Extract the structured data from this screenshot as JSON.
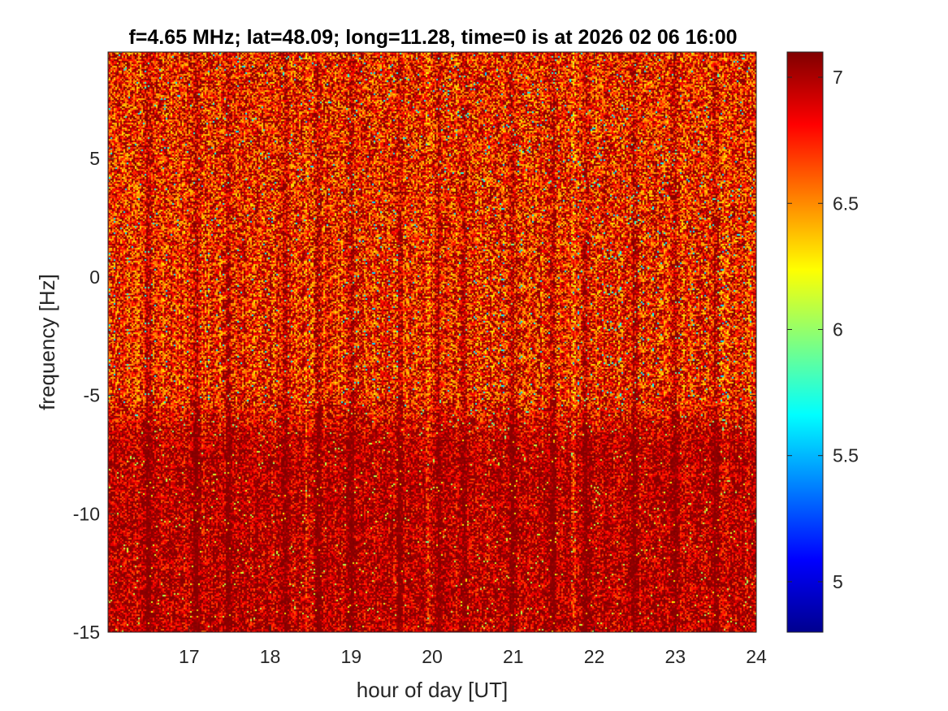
{
  "chart_data": {
    "type": "heatmap",
    "title": "f=4.65 MHz;  lat=48.09; long=11.28, time=0 is at 2026 02 06 16:00",
    "xlabel": "hour of day [UT]",
    "ylabel": "frequency [Hz]",
    "xlim": [
      16,
      24
    ],
    "ylim": [
      -15,
      9.5
    ],
    "x_ticks": [
      17,
      18,
      19,
      20,
      21,
      22,
      23,
      24
    ],
    "y_ticks": [
      -15,
      -10,
      -5,
      0,
      5
    ],
    "colorbar": {
      "lim": [
        4.8,
        7.1
      ],
      "ticks": [
        5,
        5.5,
        6,
        6.5,
        7
      ],
      "colormap": "jet"
    },
    "dominant_value": 7.0,
    "background_value_range": [
      6.3,
      7.1
    ],
    "darker_region_below_hz": -5,
    "dark_vertical_streaks_at_hours": [
      16.5,
      17.1,
      17.5,
      18.2,
      18.6,
      19.0,
      19.6,
      20.1,
      20.4,
      21.0,
      21.5,
      21.9,
      22.5,
      23.0,
      23.5
    ],
    "bright_vertical_streaks_at_hours": [
      18.45,
      19.95,
      21.75
    ]
  }
}
